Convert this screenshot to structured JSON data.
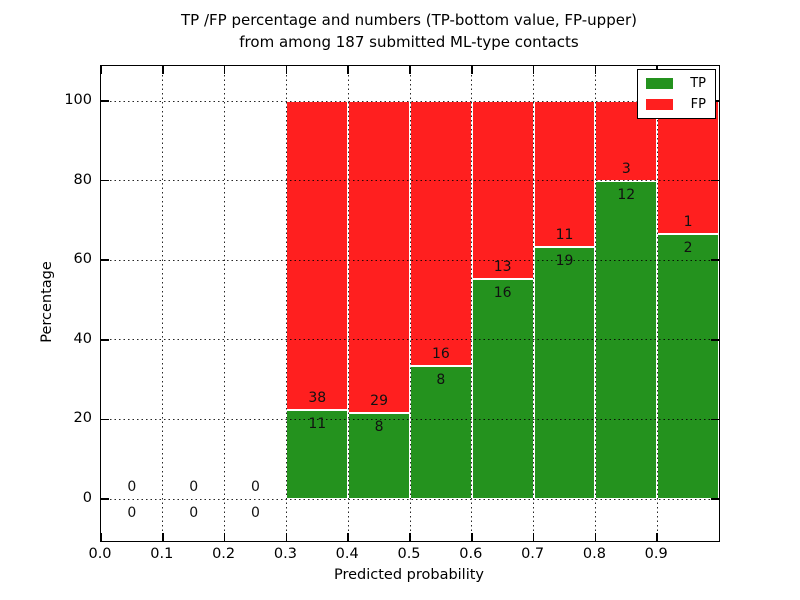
{
  "title": {
    "line1": "TP /FP percentage and numbers (TP-bottom value, FP-upper)",
    "line2": "from among 187 submitted ML-type contacts"
  },
  "axes": {
    "xlabel": "Predicted probability",
    "ylabel": "Percentage",
    "x_tick_labels": [
      "0.0",
      "0.1",
      "0.2",
      "0.3",
      "0.4",
      "0.5",
      "0.6",
      "0.7",
      "0.8",
      "0.9"
    ],
    "x_tick_values": [
      0.0,
      0.1,
      0.2,
      0.3,
      0.4,
      0.5,
      0.6,
      0.7,
      0.8,
      0.9
    ],
    "y_tick_labels": [
      "0",
      "20",
      "40",
      "60",
      "80",
      "100"
    ],
    "y_tick_values": [
      0,
      20,
      40,
      60,
      80,
      100
    ],
    "x_gridlines": [
      0.1,
      0.2,
      0.3,
      0.4,
      0.5,
      0.6,
      0.7,
      0.8,
      0.9
    ],
    "y_gridlines": [
      0,
      20,
      40,
      60,
      80,
      100
    ],
    "grid_style": "dotted"
  },
  "legend": {
    "position": "upper-right",
    "items": [
      {
        "label": "TP",
        "color": "#24921e"
      },
      {
        "label": "FP",
        "color": "#ff1f1f"
      }
    ]
  },
  "chart_data": {
    "type": "bar",
    "stacked": true,
    "title": "TP /FP percentage and numbers (TP-bottom value, FP-upper) from among 187 submitted ML-type contacts",
    "xlabel": "Predicted probability",
    "ylabel": "Percentage",
    "xlim": [
      0.0,
      1.0
    ],
    "ylim": [
      -10.5,
      109
    ],
    "grid": true,
    "total_contacts": 187,
    "bin_width": 0.1,
    "series": [
      {
        "name": "TP",
        "color": "#24921e"
      },
      {
        "name": "FP",
        "color": "#ff1f1f"
      }
    ],
    "bins": [
      {
        "x_start": 0.0,
        "x_end": 0.1,
        "tp": 0,
        "fp": 0,
        "tp_pct": null,
        "fp_pct": null
      },
      {
        "x_start": 0.1,
        "x_end": 0.2,
        "tp": 0,
        "fp": 0,
        "tp_pct": null,
        "fp_pct": null
      },
      {
        "x_start": 0.2,
        "x_end": 0.3,
        "tp": 0,
        "fp": 0,
        "tp_pct": null,
        "fp_pct": null
      },
      {
        "x_start": 0.3,
        "x_end": 0.4,
        "tp": 11,
        "fp": 38,
        "tp_pct": 22.4,
        "fp_pct": 77.6
      },
      {
        "x_start": 0.4,
        "x_end": 0.5,
        "tp": 8,
        "fp": 29,
        "tp_pct": 21.6,
        "fp_pct": 78.4
      },
      {
        "x_start": 0.5,
        "x_end": 0.6,
        "tp": 8,
        "fp": 16,
        "tp_pct": 33.3,
        "fp_pct": 66.7
      },
      {
        "x_start": 0.6,
        "x_end": 0.7,
        "tp": 16,
        "fp": 13,
        "tp_pct": 55.2,
        "fp_pct": 44.8
      },
      {
        "x_start": 0.7,
        "x_end": 0.8,
        "tp": 19,
        "fp": 11,
        "tp_pct": 63.3,
        "fp_pct": 36.7
      },
      {
        "x_start": 0.8,
        "x_end": 0.9,
        "tp": 12,
        "fp": 3,
        "tp_pct": 80.0,
        "fp_pct": 20.0
      },
      {
        "x_start": 0.9,
        "x_end": 1.0,
        "tp": 2,
        "fp": 1,
        "tp_pct": 66.7,
        "fp_pct": 33.3
      }
    ]
  },
  "colors": {
    "background": "#ffffff",
    "axis": "#000000",
    "bar_edge": "#ffffff",
    "text": "#000000",
    "tp": "#24921e",
    "fp": "#ff1f1f"
  }
}
